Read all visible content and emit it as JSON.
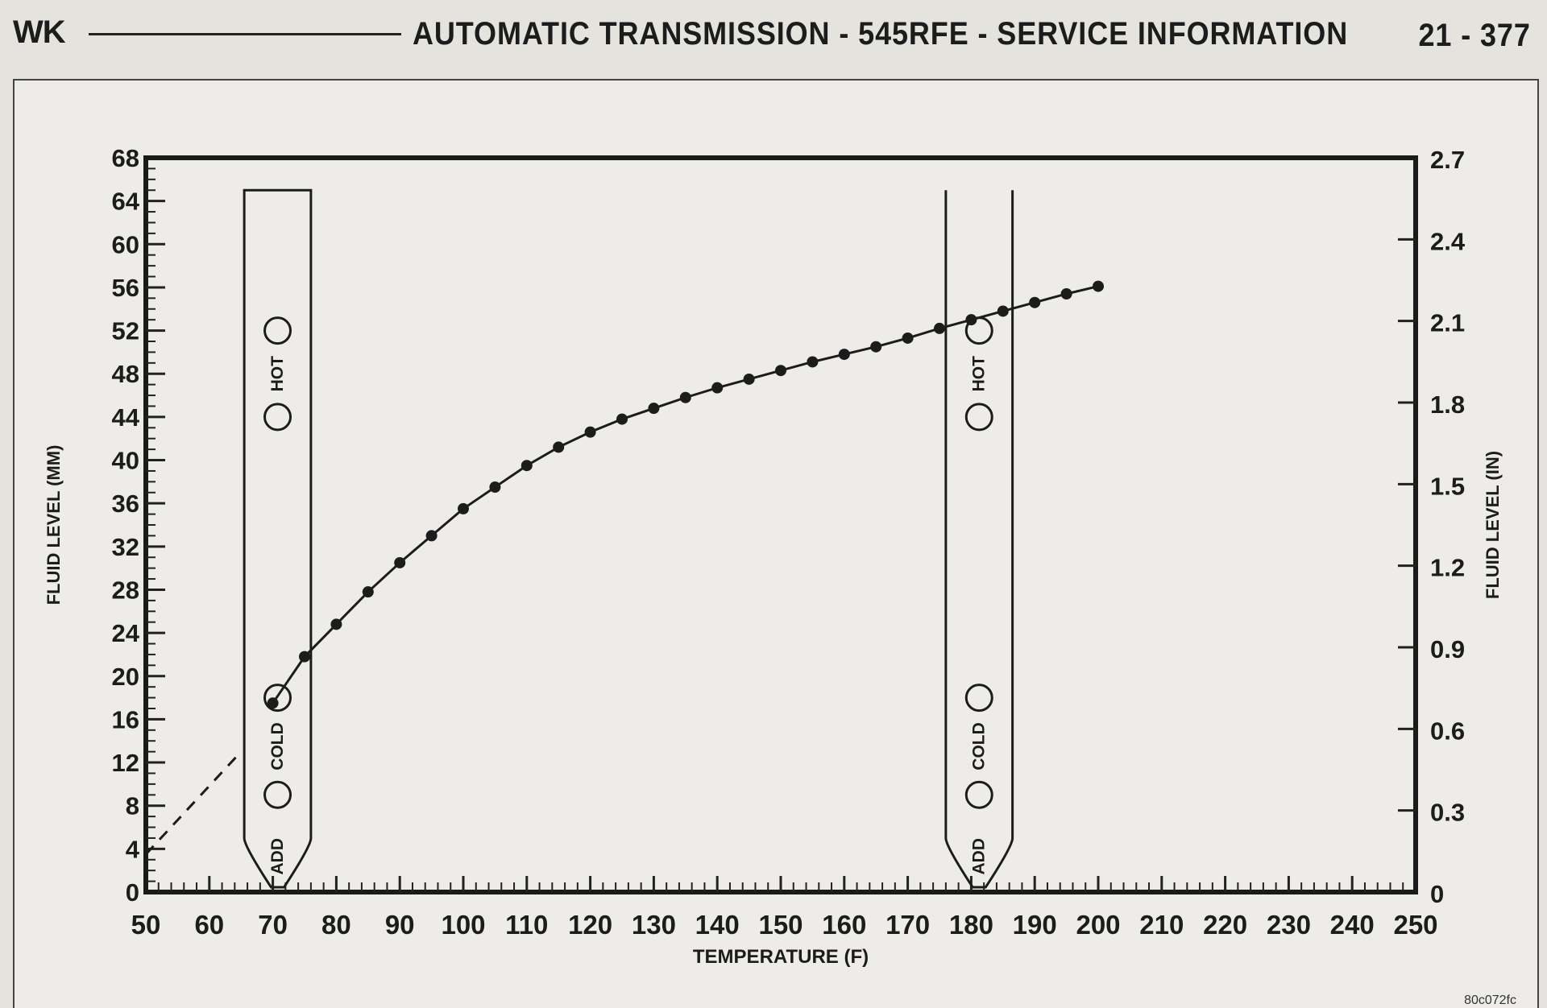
{
  "header": {
    "left": "WK",
    "title": "AUTOMATIC TRANSMISSION - 545RFE - SERVICE INFORMATION",
    "page": "21 - 377"
  },
  "figure_id": "80c072fc",
  "chart_data": {
    "type": "line",
    "xlabel": "TEMPERATURE (F)",
    "ylabel": "FLUID LEVEL (MM)",
    "y2label": "FLUID LEVEL (IN)",
    "xlim": [
      50,
      250
    ],
    "ylim": [
      0,
      68
    ],
    "y2lim": [
      0,
      2.7
    ],
    "x_ticks": [
      50,
      60,
      70,
      80,
      90,
      100,
      110,
      120,
      130,
      140,
      150,
      160,
      170,
      180,
      190,
      200,
      210,
      220,
      230,
      240,
      250
    ],
    "y_ticks": [
      0,
      4,
      8,
      12,
      16,
      20,
      24,
      28,
      32,
      36,
      40,
      44,
      48,
      52,
      56,
      60,
      64,
      68
    ],
    "y2_ticks": [
      "0",
      "0.3",
      "0.6",
      "0.9",
      "1.2",
      "1.5",
      "1.8",
      "2.1",
      "2.4",
      "2.7"
    ],
    "grid": false,
    "series": [
      {
        "style": "solid-with-markers",
        "x": [
          70,
          75,
          80,
          85,
          90,
          95,
          100,
          105,
          110,
          115,
          120,
          125,
          130,
          135,
          140,
          145,
          150,
          155,
          160,
          165,
          170,
          175,
          180,
          185,
          190,
          195,
          200
        ],
        "y": [
          17.5,
          21.8,
          24.8,
          27.8,
          30.5,
          33,
          35.5,
          37.5,
          39.5,
          41.2,
          42.6,
          43.8,
          44.8,
          45.8,
          46.7,
          47.5,
          48.3,
          49.1,
          49.8,
          50.5,
          51.3,
          52.2,
          53,
          53.8,
          54.6,
          55.4,
          56.1
        ]
      },
      {
        "style": "dashed",
        "x": [
          50,
          65
        ],
        "y": [
          3.5,
          13
        ]
      }
    ],
    "dipsticks": [
      {
        "label_add": "ADD",
        "label_cold": "COLD",
        "label_hot": "HOT",
        "x_range": [
          65.5,
          76
        ],
        "top_y": 65,
        "cold_marks": [
          9,
          18
        ],
        "hot_marks": [
          44,
          52
        ],
        "highlight": "cold-upper"
      },
      {
        "label_add": "ADD",
        "label_cold": "COLD",
        "label_hot": "HOT",
        "x_range": [
          176,
          186.5
        ],
        "top_y": 65,
        "cold_marks": [
          9,
          18
        ],
        "hot_marks": [
          44,
          52
        ],
        "highlight": "hot-upper"
      }
    ]
  }
}
